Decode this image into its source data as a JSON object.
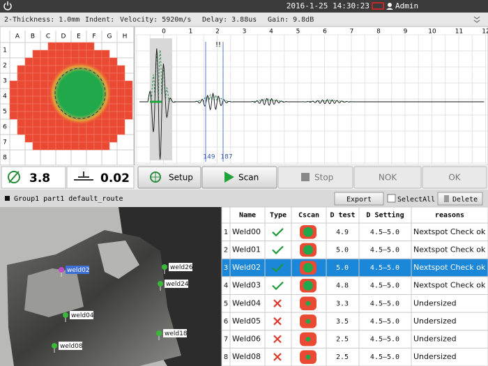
{
  "status_bar": {
    "datetime": "2016-1-25 14:30:23",
    "user": "Admin"
  },
  "info_bar": {
    "thickness": "2-Thickness: 1.0mm",
    "indent": "Indent:",
    "velocity": "Velocity: 5920m/s",
    "delay": "Delay: 3.88us",
    "gain": "Gain: 9.8dB"
  },
  "cscan": {
    "columns": [
      "A",
      "B",
      "C",
      "D",
      "E",
      "F",
      "G",
      "H"
    ],
    "rows": [
      "1",
      "2",
      "3",
      "4",
      "5",
      "6",
      "7",
      "8"
    ]
  },
  "ascan": {
    "ticks": [
      "0",
      "1",
      "2",
      "3",
      "4",
      "5",
      "6",
      "7",
      "8",
      "9",
      "10",
      "11",
      "12"
    ],
    "marker": "!!",
    "gates": [
      "149",
      "187"
    ]
  },
  "readings": {
    "diameter": "3.8",
    "indent": "0.02"
  },
  "buttons": {
    "setup": "Setup",
    "scan": "Scan",
    "stop": "Stop",
    "nok": "NOK",
    "ok": "OK"
  },
  "route": {
    "name": "Group1 part1 default_route",
    "export": "Export",
    "select_all": "SelectAll",
    "delete": "Delete"
  },
  "photo_labels": [
    "weld02",
    "weld04",
    "weld08",
    "weld26",
    "weld24",
    "weld18"
  ],
  "table": {
    "headers": [
      "Name",
      "Type",
      "Cscan",
      "D test",
      "D Setting",
      "reasons"
    ],
    "rows": [
      [
        "1",
        "Weld00",
        "4.9",
        "4.5–5.0",
        "Nextspot Check ok"
      ],
      [
        "2",
        "Weld01",
        "5.0",
        "4.5–5.0",
        "Nextspot Check ok"
      ],
      [
        "3",
        "Weld02",
        "5.0",
        "4.5–5.0",
        "Nextspot Check ok"
      ],
      [
        "4",
        "Weld03",
        "4.8",
        "4.5–5.0",
        "Nextspot Check ok"
      ],
      [
        "5",
        "Weld04",
        "3.3",
        "4.5–5.0",
        "Undersized"
      ],
      [
        "6",
        "Weld05",
        "3.5",
        "4.5–5.0",
        "Undersized"
      ],
      [
        "7",
        "Weld06",
        "2.5",
        "4.5–5.0",
        "Undersized"
      ],
      [
        "8",
        "Weld08",
        "2.5",
        "4.5–5.0",
        "Undersized"
      ]
    ]
  }
}
